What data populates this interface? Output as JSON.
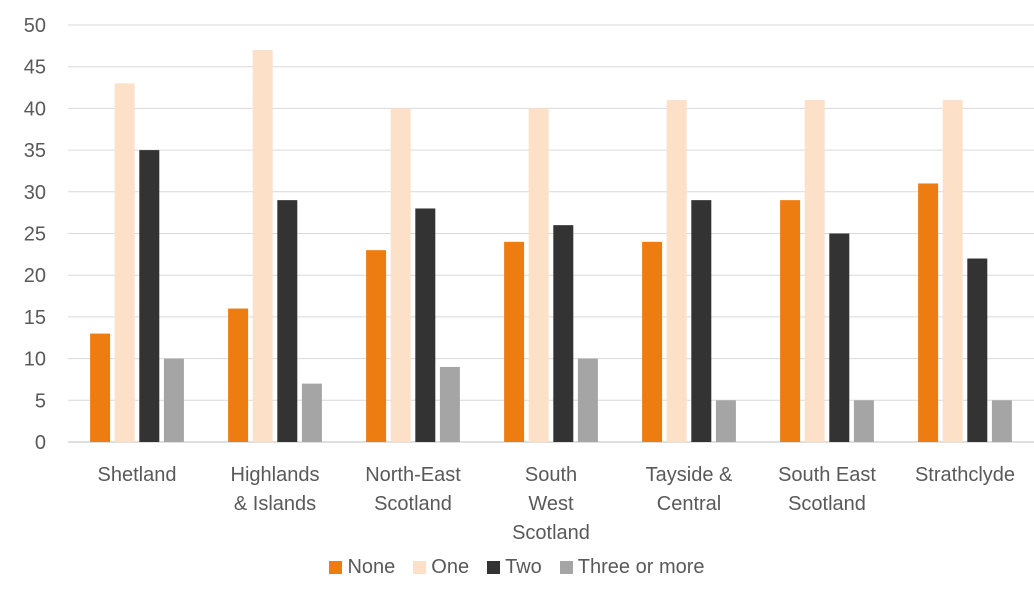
{
  "chart_data": {
    "type": "bar",
    "categories": [
      [
        "Shetland"
      ],
      [
        "Highlands",
        "& Islands"
      ],
      [
        "North-East",
        "Scotland"
      ],
      [
        "South",
        "West",
        "Scotland"
      ],
      [
        "Tayside &",
        "Central"
      ],
      [
        "South East",
        "Scotland"
      ],
      [
        "Strathclyde"
      ]
    ],
    "series": [
      {
        "name": "None",
        "color": "#ed7d10",
        "values": [
          13,
          16,
          23,
          24,
          24,
          29,
          31
        ]
      },
      {
        "name": "One",
        "color": "#fde0c8",
        "values": [
          43,
          47,
          40,
          40,
          41,
          41,
          41
        ]
      },
      {
        "name": "Two",
        "color": "#333333",
        "values": [
          35,
          29,
          28,
          26,
          29,
          25,
          22
        ]
      },
      {
        "name": "Three or more",
        "color": "#a5a5a5",
        "values": [
          10,
          7,
          9,
          10,
          5,
          5,
          5
        ]
      }
    ],
    "ylim": [
      0,
      50
    ],
    "yticks": [
      "0",
      "5",
      "10",
      "15",
      "20",
      "25",
      "30",
      "35",
      "40",
      "45",
      "50"
    ],
    "grid": true,
    "legend_position": "bottom"
  }
}
